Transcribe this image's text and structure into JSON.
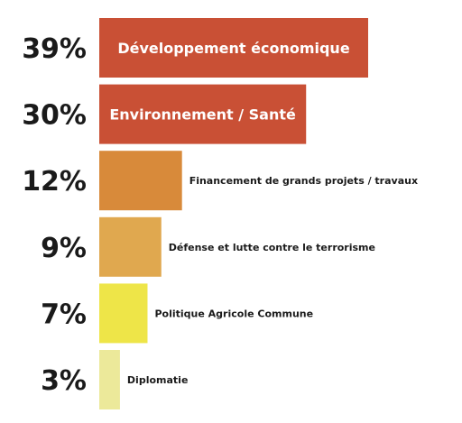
{
  "chart_data": {
    "type": "bar",
    "orientation": "horizontal",
    "title": "",
    "xlabel": "",
    "ylabel": "",
    "grid": false,
    "legend": "none",
    "xlim": [
      0,
      39
    ],
    "categories": [
      "Développement économique",
      "Environnement / Santé",
      "Financement de grands projets / travaux",
      "Défense et lutte contre le terrorisme",
      "Politique Agricole Commune",
      "Diplomatie"
    ],
    "values": [
      39,
      30,
      12,
      9,
      7,
      3
    ],
    "value_labels": [
      "39%",
      "30%",
      "12%",
      "9%",
      "7%",
      "3%"
    ],
    "label_position": [
      "inside",
      "inside",
      "outside",
      "outside",
      "outside",
      "outside"
    ],
    "colors": [
      "#c95035",
      "#c95035",
      "#d88a3a",
      "#e0a84f",
      "#eee548",
      "#ece99a"
    ]
  }
}
